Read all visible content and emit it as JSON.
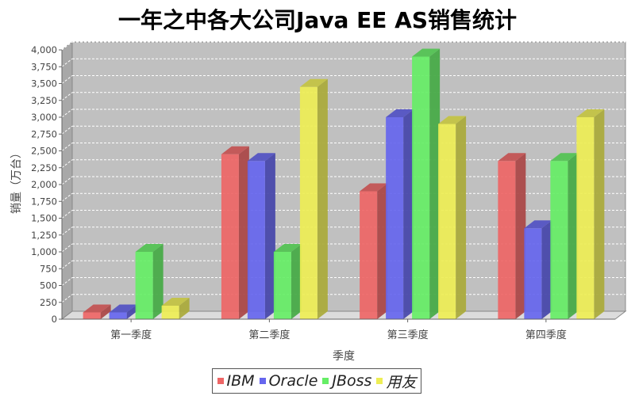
{
  "chart_data": {
    "type": "bar",
    "title": "一年之中各大公司Java EE AS销售统计",
    "xlabel": "季度",
    "ylabel": "销量（万台）",
    "categories": [
      "第一季度",
      "第二季度",
      "第三季度",
      "第四季度"
    ],
    "series": [
      {
        "name": "IBM",
        "color": "#ee6666",
        "values": [
          100,
          2450,
          1900,
          2350
        ]
      },
      {
        "name": "Oracle",
        "color": "#6666ee",
        "values": [
          100,
          2350,
          3000,
          1350
        ]
      },
      {
        "name": "JBoss",
        "color": "#66ee66",
        "values": [
          1000,
          1000,
          3900,
          2350
        ]
      },
      {
        "name": "用友",
        "color": "#eeee55",
        "values": [
          200,
          3450,
          2900,
          3000
        ]
      }
    ],
    "ylim": [
      0,
      4000
    ],
    "yticks": [
      0,
      250,
      500,
      750,
      1000,
      1250,
      1500,
      1750,
      2000,
      2250,
      2500,
      2750,
      3000,
      3250,
      3500,
      3750,
      4000
    ],
    "ytick_labels": [
      "0",
      "250",
      "500",
      "750",
      "1,000",
      "1,250",
      "1,500",
      "1,750",
      "2,000",
      "2,250",
      "2,500",
      "2,750",
      "3,000",
      "3,250",
      "3,500",
      "3,750",
      "4,000"
    ],
    "grid": true,
    "legend_position": "bottom",
    "style": "3d"
  }
}
